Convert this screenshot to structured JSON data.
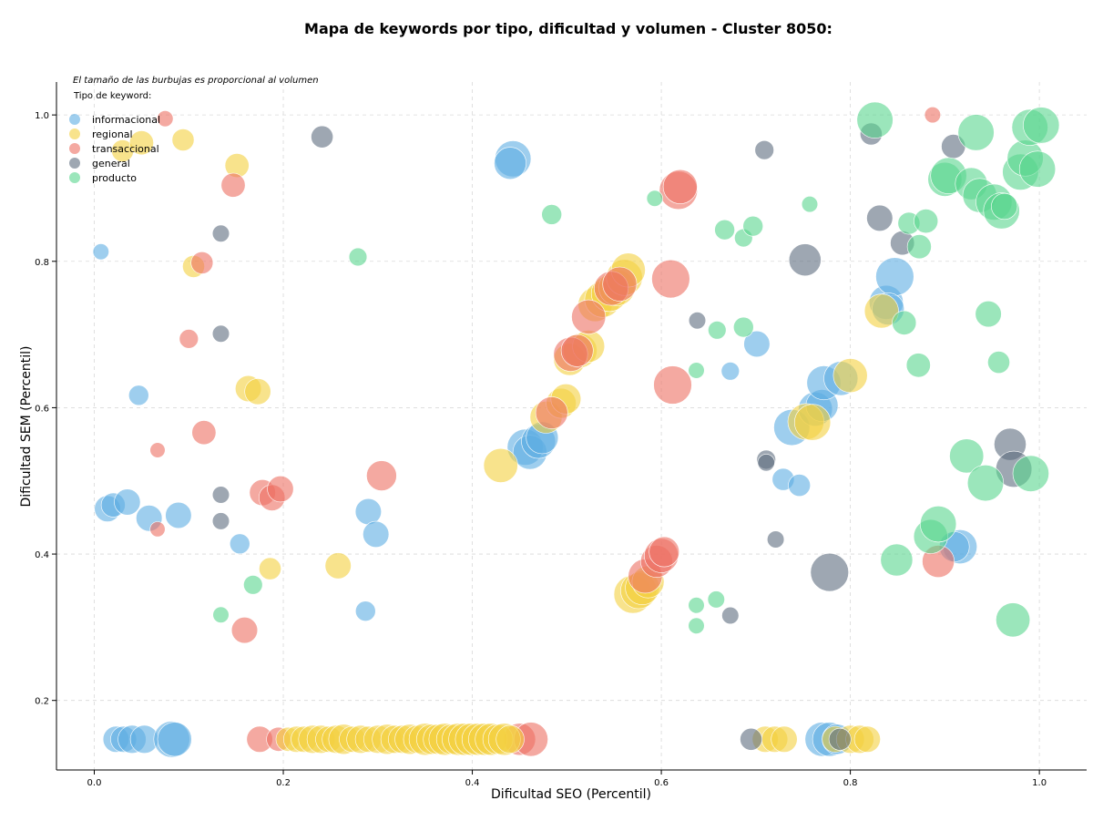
{
  "colors": {
    "informacional": "#5DADE2",
    "regional": "#F4D03F",
    "transaccional": "#EC7063",
    "general": "#5D6D7E",
    "producto": "#58D68D"
  },
  "chart_data": {
    "type": "scatter",
    "title": "Mapa de keywords por tipo, dificultad y volumen - Cluster 8050:",
    "xlabel": "Dificultad SEO (Percentil)",
    "ylabel": "Dificultad SEM (Percentil)",
    "xlim": [
      -0.04,
      1.05
    ],
    "ylim": [
      0.105,
      1.045
    ],
    "xticks": [
      "0.0",
      "0.2",
      "0.4",
      "0.6",
      "0.8",
      "1.0"
    ],
    "yticks": [
      "0.2",
      "0.4",
      "0.6",
      "0.8",
      "1.0"
    ],
    "grid": true,
    "note": "El tamaño de las burbujas es proporcional al volumen",
    "legend": {
      "title": "Tipo de keyword:",
      "placement": "top-left",
      "entries": [
        "informacional",
        "regional",
        "transaccional",
        "general",
        "producto"
      ]
    },
    "series": [
      {
        "name": "informacional",
        "points": [
          [
            0.007,
            0.813,
            0.8
          ],
          [
            0.047,
            0.617,
            1
          ],
          [
            0.014,
            0.462,
            1.3
          ],
          [
            0.02,
            0.467,
            1.2
          ],
          [
            0.035,
            0.471,
            1.3
          ],
          [
            0.058,
            0.449,
            1.3
          ],
          [
            0.089,
            0.453,
            1.3
          ],
          [
            0.154,
            0.414,
            1
          ],
          [
            0.29,
            0.458,
            1.3
          ],
          [
            0.298,
            0.427,
            1.3
          ],
          [
            0.287,
            0.322,
            1
          ],
          [
            0.023,
            0.147,
            1.3
          ],
          [
            0.031,
            0.147,
            1.3
          ],
          [
            0.04,
            0.147,
            1.4
          ],
          [
            0.053,
            0.147,
            1.4
          ],
          [
            0.082,
            0.147,
            1.8
          ],
          [
            0.085,
            0.147,
            1.7
          ],
          [
            0.443,
            0.94,
            1.8
          ],
          [
            0.44,
            0.934,
            1.6
          ],
          [
            0.456,
            0.546,
            1.8
          ],
          [
            0.461,
            0.539,
            1.7
          ],
          [
            0.47,
            0.554,
            1.7
          ],
          [
            0.474,
            0.559,
            1.6
          ],
          [
            0.673,
            0.65,
            0.9
          ],
          [
            0.701,
            0.687,
            1.3
          ],
          [
            0.729,
            0.502,
            1.1
          ],
          [
            0.746,
            0.494,
            1.1
          ],
          [
            0.738,
            0.573,
            1.8
          ],
          [
            0.763,
            0.598,
            1.7
          ],
          [
            0.77,
            0.603,
            1.6
          ],
          [
            0.772,
            0.634,
            1.7
          ],
          [
            0.79,
            0.64,
            1.7
          ],
          [
            0.838,
            0.744,
            1.7
          ],
          [
            0.847,
            0.779,
            1.9
          ],
          [
            0.84,
            0.735,
            1.6
          ],
          [
            0.916,
            0.41,
            1.7
          ],
          [
            0.91,
            0.41,
            1.5
          ],
          [
            0.77,
            0.147,
            1.7
          ],
          [
            0.778,
            0.147,
            1.7
          ],
          [
            0.786,
            0.147,
            1.5
          ]
        ]
      },
      {
        "name": "regional",
        "points": [
          [
            0.03,
            0.951,
            1.1
          ],
          [
            0.05,
            0.962,
            1.2
          ],
          [
            0.094,
            0.966,
            1.1
          ],
          [
            0.105,
            0.793,
            1.1
          ],
          [
            0.151,
            0.931,
            1.2
          ],
          [
            0.163,
            0.626,
            1.3
          ],
          [
            0.173,
            0.622,
            1.3
          ],
          [
            0.186,
            0.38,
            1.1
          ],
          [
            0.258,
            0.384,
            1.3
          ],
          [
            0.43,
            0.521,
            1.7
          ],
          [
            0.478,
            0.587,
            1.6
          ],
          [
            0.494,
            0.606,
            1.5
          ],
          [
            0.499,
            0.612,
            1.5
          ],
          [
            0.503,
            0.666,
            1.6
          ],
          [
            0.514,
            0.678,
            1.7
          ],
          [
            0.523,
            0.684,
            1.6
          ],
          [
            0.53,
            0.741,
            1.7
          ],
          [
            0.538,
            0.748,
            1.8
          ],
          [
            0.545,
            0.756,
            1.8
          ],
          [
            0.553,
            0.764,
            1.8
          ],
          [
            0.561,
            0.778,
            1.8
          ],
          [
            0.565,
            0.788,
            1.7
          ],
          [
            0.57,
            0.345,
            1.9
          ],
          [
            0.576,
            0.35,
            1.8
          ],
          [
            0.58,
            0.354,
            1.7
          ],
          [
            0.586,
            0.362,
            1.6
          ],
          [
            0.753,
            0.581,
            1.8
          ],
          [
            0.76,
            0.58,
            1.8
          ],
          [
            0.8,
            0.644,
            1.7
          ],
          [
            0.833,
            0.732,
            1.7
          ],
          [
            0.71,
            0.147,
            1.3
          ],
          [
            0.72,
            0.147,
            1.3
          ],
          [
            0.73,
            0.147,
            1.3
          ],
          [
            0.784,
            0.147,
            1.3
          ],
          [
            0.8,
            0.147,
            1.4
          ],
          [
            0.81,
            0.147,
            1.4
          ],
          [
            0.818,
            0.147,
            1.3
          ]
        ]
      },
      {
        "name": "transaccional",
        "points": [
          [
            0.075,
            0.995,
            0.8
          ],
          [
            0.114,
            0.798,
            1.1
          ],
          [
            0.147,
            0.904,
            1.2
          ],
          [
            0.1,
            0.694,
            0.95
          ],
          [
            0.116,
            0.566,
            1.2
          ],
          [
            0.067,
            0.542,
            0.75
          ],
          [
            0.067,
            0.434,
            0.75
          ],
          [
            0.159,
            0.296,
            1.3
          ],
          [
            0.178,
            0.484,
            1.3
          ],
          [
            0.188,
            0.477,
            1.3
          ],
          [
            0.197,
            0.489,
            1.3
          ],
          [
            0.304,
            0.507,
            1.5
          ],
          [
            0.484,
            0.593,
            1.6
          ],
          [
            0.504,
            0.673,
            1.7
          ],
          [
            0.511,
            0.678,
            1.6
          ],
          [
            0.523,
            0.724,
            1.7
          ],
          [
            0.547,
            0.763,
            1.7
          ],
          [
            0.556,
            0.769,
            1.7
          ],
          [
            0.583,
            0.37,
            1.7
          ],
          [
            0.595,
            0.39,
            1.6
          ],
          [
            0.6,
            0.398,
            1.7
          ],
          [
            0.603,
            0.403,
            1.5
          ],
          [
            0.61,
            0.776,
            1.9
          ],
          [
            0.612,
            0.631,
            1.9
          ],
          [
            0.618,
            0.897,
            1.9
          ],
          [
            0.62,
            0.902,
            1.7
          ],
          [
            0.887,
            1.0,
            0.8
          ],
          [
            0.893,
            0.39,
            1.6
          ],
          [
            0.175,
            0.147,
            1.3
          ],
          [
            0.195,
            0.147,
            1.2
          ],
          [
            0.45,
            0.147,
            1.6
          ],
          [
            0.462,
            0.147,
            1.7
          ]
        ]
      },
      {
        "name": "general",
        "points": [
          [
            0.241,
            0.97,
            1.1
          ],
          [
            0.134,
            0.838,
            0.85
          ],
          [
            0.134,
            0.701,
            0.85
          ],
          [
            0.134,
            0.481,
            0.85
          ],
          [
            0.134,
            0.445,
            0.85
          ],
          [
            0.638,
            0.719,
            0.85
          ],
          [
            0.673,
            0.316,
            0.85
          ],
          [
            0.695,
            0.147,
            1.1
          ],
          [
            0.709,
            0.952,
            0.95
          ],
          [
            0.711,
            0.529,
            0.95
          ],
          [
            0.711,
            0.525,
            0.85
          ],
          [
            0.721,
            0.42,
            0.85
          ],
          [
            0.752,
            0.802,
            1.6
          ],
          [
            0.778,
            0.375,
            1.9
          ],
          [
            0.789,
            0.147,
            1.1
          ],
          [
            0.822,
            0.974,
            1.1
          ],
          [
            0.831,
            0.859,
            1.3
          ],
          [
            0.855,
            0.825,
            1.2
          ],
          [
            0.909,
            0.957,
            1.2
          ],
          [
            0.969,
            0.55,
            1.6
          ],
          [
            0.973,
            0.516,
            1.8
          ]
        ]
      },
      {
        "name": "producto",
        "points": [
          [
            0.279,
            0.806,
            0.9
          ],
          [
            0.134,
            0.317,
            0.8
          ],
          [
            0.168,
            0.358,
            0.95
          ],
          [
            0.484,
            0.864,
            1
          ],
          [
            0.593,
            0.886,
            0.8
          ],
          [
            0.637,
            0.651,
            0.8
          ],
          [
            0.637,
            0.33,
            0.8
          ],
          [
            0.637,
            0.302,
            0.8
          ],
          [
            0.658,
            0.338,
            0.85
          ],
          [
            0.659,
            0.706,
            0.9
          ],
          [
            0.667,
            0.843,
            1
          ],
          [
            0.687,
            0.71,
            1
          ],
          [
            0.687,
            0.832,
            0.9
          ],
          [
            0.697,
            0.848,
            1
          ],
          [
            0.757,
            0.878,
            0.8
          ],
          [
            0.826,
            0.993,
            1.8
          ],
          [
            0.857,
            0.716,
            1.2
          ],
          [
            0.862,
            0.852,
            1.1
          ],
          [
            0.872,
            0.658,
            1.2
          ],
          [
            0.873,
            0.82,
            1.2
          ],
          [
            0.88,
            0.855,
            1.2
          ],
          [
            0.849,
            0.392,
            1.6
          ],
          [
            0.885,
            0.424,
            1.7
          ],
          [
            0.893,
            0.441,
            1.8
          ],
          [
            0.9,
            0.912,
            1.7
          ],
          [
            0.904,
            0.917,
            1.8
          ],
          [
            0.923,
            0.534,
            1.7
          ],
          [
            0.928,
            0.906,
            1.6
          ],
          [
            0.933,
            0.976,
            1.8
          ],
          [
            0.937,
            0.89,
            1.7
          ],
          [
            0.943,
            0.497,
            1.8
          ],
          [
            0.946,
            0.728,
            1.3
          ],
          [
            0.952,
            0.881,
            1.8
          ],
          [
            0.957,
            0.662,
            1.1
          ],
          [
            0.96,
            0.869,
            1.8
          ],
          [
            0.963,
            0.875,
            1.3
          ],
          [
            0.972,
            0.31,
            1.7
          ],
          [
            0.98,
            0.922,
            1.8
          ],
          [
            0.985,
            0.941,
            1.8
          ],
          [
            0.99,
            0.983,
            1.8
          ],
          [
            0.998,
            0.926,
            1.8
          ],
          [
            1.002,
            0.986,
            1.8
          ],
          [
            0.991,
            0.51,
            1.8
          ]
        ]
      }
    ],
    "bottom_band": {
      "series": "regional",
      "y": 0.147,
      "x_points": [
        0.205,
        0.214,
        0.222,
        0.231,
        0.24,
        0.248,
        0.256,
        0.264,
        0.273,
        0.282,
        0.29,
        0.3,
        0.31,
        0.318,
        0.326,
        0.334,
        0.342,
        0.35,
        0.357,
        0.364,
        0.371,
        0.378,
        0.385,
        0.392,
        0.399,
        0.406,
        0.413,
        0.42,
        0.427,
        0.434,
        0.44
      ],
      "sizes": [
        1.2,
        1.3,
        1.3,
        1.4,
        1.4,
        1.3,
        1.4,
        1.5,
        1.3,
        1.4,
        1.3,
        1.4,
        1.5,
        1.4,
        1.4,
        1.5,
        1.4,
        1.6,
        1.5,
        1.5,
        1.6,
        1.5,
        1.6,
        1.6,
        1.6,
        1.6,
        1.6,
        1.6,
        1.5,
        1.6,
        1.4
      ]
    }
  }
}
